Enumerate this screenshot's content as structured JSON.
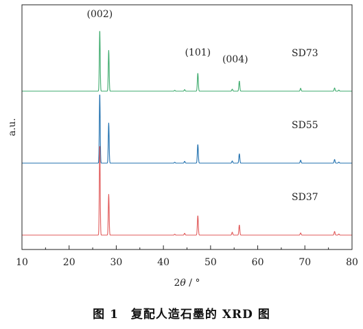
{
  "caption": "图 1　复配人造石墨的 XRD 图",
  "chart_data": {
    "type": "line",
    "title": "",
    "xlabel": "2θ / °",
    "ylabel": "a.u.",
    "xlim": [
      10,
      80
    ],
    "xticks": [
      10,
      20,
      30,
      40,
      50,
      60,
      70,
      80
    ],
    "grid": false,
    "legend": "none",
    "annotations": [
      {
        "text": "(002)",
        "x": 26.5
      },
      {
        "text": "(101)",
        "x": 47.3
      },
      {
        "text": "(004)",
        "x": 56.1
      }
    ],
    "peak_positions": [
      26.5,
      28.4,
      42.4,
      44.5,
      47.3,
      54.6,
      56.1,
      69.1,
      76.3,
      77.2
    ],
    "series": [
      {
        "name": "SD73",
        "color": "#3daa6c",
        "offset": 2.0,
        "y_at_80": 2.45,
        "intensities": [
          0.85,
          0.57,
          0.012,
          0.022,
          0.25,
          0.028,
          0.14,
          0.04,
          0.045,
          0.015
        ]
      },
      {
        "name": "SD55",
        "color": "#1f6fae",
        "offset": 1.0,
        "y_at_80": 1.45,
        "intensities": [
          0.97,
          0.56,
          0.012,
          0.025,
          0.26,
          0.03,
          0.13,
          0.04,
          0.05,
          0.015
        ]
      },
      {
        "name": "SD37",
        "color": "#e05858",
        "offset": 0.0,
        "y_at_80": 0.45,
        "intensities": [
          1.26,
          0.57,
          0.012,
          0.025,
          0.27,
          0.04,
          0.14,
          0.03,
          0.05,
          0.015
        ]
      }
    ]
  }
}
